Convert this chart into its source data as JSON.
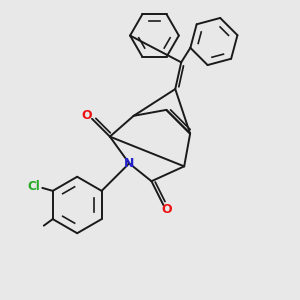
{
  "bg_color": "#e8e8e8",
  "bond_color": "#1a1a1a",
  "bond_lw": 1.4,
  "O_color": "#ee1111",
  "N_color": "#2222cc",
  "Cl_color": "#22aa22",
  "fig_w": 3.0,
  "fig_h": 3.0,
  "dpi": 100,
  "xlim": [
    0,
    10
  ],
  "ylim": [
    0,
    10
  ]
}
